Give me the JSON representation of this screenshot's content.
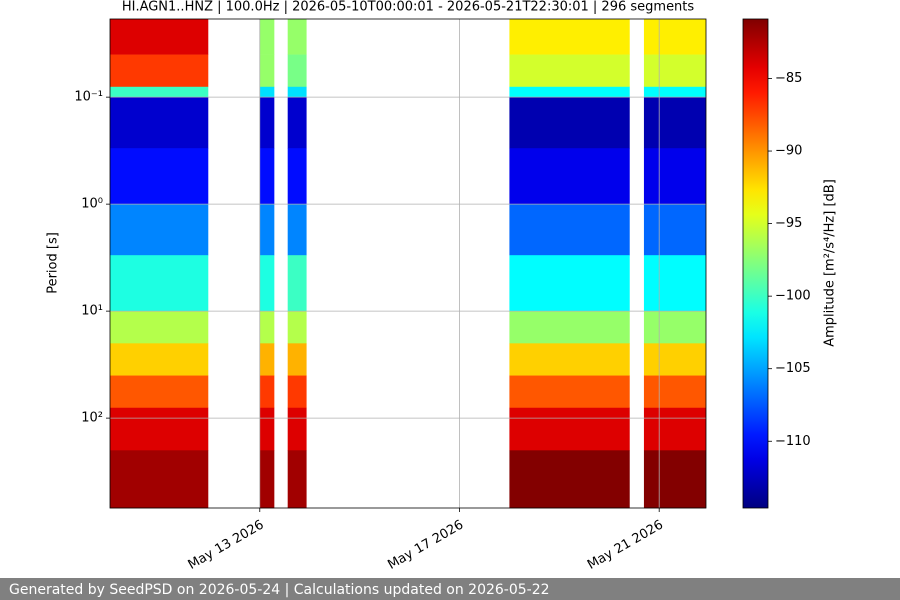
{
  "chart_data": {
    "type": "spectrogram",
    "title": "HI.AGN1..HNZ | 100.0Hz | 2026-05-10T00:00:01 - 2026-05-21T22:30:01 | 296 segments",
    "ylabel": "Period [s]",
    "colorbar_label": "Amplitude [m²/s⁴/Hz] [dB]",
    "cmap": "jet",
    "ylog": true,
    "yinvert": true,
    "grid": true,
    "ylim": [
      0.0186,
      692
    ],
    "yticks": [
      {
        "value": 0.1,
        "label": "10⁻¹"
      },
      {
        "value": 1,
        "label": "10⁰"
      },
      {
        "value": 10,
        "label": "10¹"
      },
      {
        "value": 100,
        "label": "10²"
      }
    ],
    "xlim": [
      "2026-05-10T00:00:01",
      "2026-05-21T22:30:01"
    ],
    "xticks": [
      {
        "value": "2026-05-13T00:00:00",
        "label": "May 13 2026"
      },
      {
        "value": "2026-05-17T00:00:00",
        "label": "May 17 2026"
      },
      {
        "value": "2026-05-21T00:00:00",
        "label": "May 21 2026"
      }
    ],
    "clim": [
      -114.6,
      -80.9
    ],
    "cticks": [
      {
        "value": -85,
        "label": "−85"
      },
      {
        "value": -90,
        "label": "−90"
      },
      {
        "value": -95,
        "label": "−95"
      },
      {
        "value": -100,
        "label": "−100"
      },
      {
        "value": -105,
        "label": "−105"
      },
      {
        "value": -110,
        "label": "−110"
      }
    ],
    "period_bins": [
      0.0186,
      0.04,
      0.08,
      0.1,
      0.3,
      1,
      3,
      10,
      20,
      40,
      80,
      200,
      692
    ],
    "segments": [
      {
        "start": "2026-05-10T00:00:01",
        "end": "2026-05-11T23:15:00",
        "values": [
          -84,
          -87,
          -100,
          -112,
          -110,
          -106,
          -101,
          -96,
          -92,
          -88,
          -84,
          -82
        ]
      },
      {
        "start": "2026-05-13T00:00:00",
        "end": "2026-05-13T07:00:00",
        "values": [
          -97,
          -97,
          -103,
          -112,
          -110,
          -106,
          -101,
          -96,
          -91,
          -87,
          -84,
          -82
        ]
      },
      {
        "start": "2026-05-13T13:25:00",
        "end": "2026-05-13T22:30:00",
        "values": [
          -97,
          -98,
          -103,
          -112,
          -110,
          -106,
          -100,
          -96,
          -91,
          -87,
          -84,
          -82
        ]
      },
      {
        "start": "2026-05-18T00:00:00",
        "end": "2026-05-20T09:50:00",
        "values": [
          -93,
          -95,
          -102,
          -113,
          -111,
          -107,
          -102,
          -97,
          -92,
          -88,
          -84,
          -81
        ]
      },
      {
        "start": "2026-05-20T16:40:00",
        "end": "2026-05-21T22:30:01",
        "values": [
          -93,
          -95,
          -102,
          -113,
          -111,
          -107,
          -102,
          -97,
          -92,
          -88,
          -84,
          -81
        ]
      }
    ]
  },
  "footer": "Generated by SeedPSD on 2026-05-24 | Calculations updated on 2026-05-22"
}
